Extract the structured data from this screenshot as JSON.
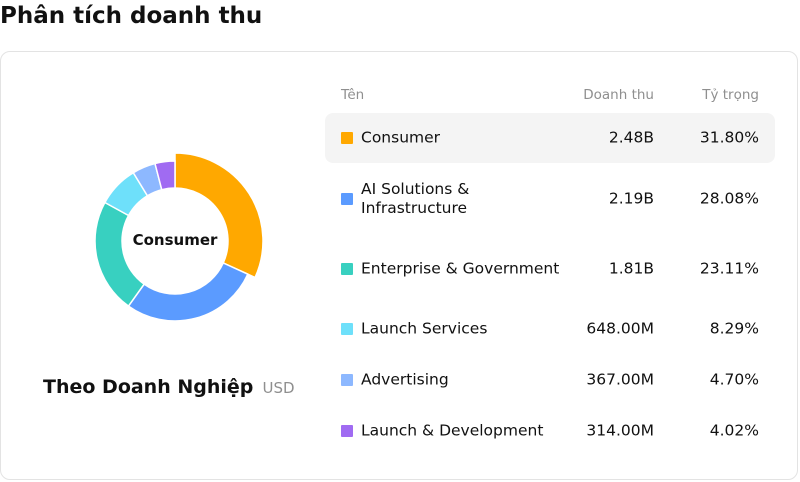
{
  "page": {
    "title": "Phân tích doanh thu"
  },
  "table": {
    "headers": {
      "name": "Tên",
      "revenue": "Doanh thu",
      "share": "Tỷ trọng"
    }
  },
  "selection": "Consumer",
  "footer": {
    "entity": "Theo Doanh Nghiệp",
    "unit": "USD"
  },
  "chart_data": {
    "type": "pie",
    "variant": "donut",
    "center_label": "Consumer",
    "slices": [
      {
        "name": "Consumer",
        "revenue": "2.48B",
        "share": "31.80%",
        "value": 31.8,
        "color": "#FFA800"
      },
      {
        "name": "AI Solutions & Infrastructure",
        "revenue": "2.19B",
        "share": "28.08%",
        "value": 28.08,
        "color": "#5B9BFF"
      },
      {
        "name": "Enterprise & Government",
        "revenue": "1.81B",
        "share": "23.11%",
        "value": 23.11,
        "color": "#38D0C0"
      },
      {
        "name": "Launch Services",
        "revenue": "648.00M",
        "share": "8.29%",
        "value": 8.29,
        "color": "#6EE0FA"
      },
      {
        "name": "Advertising",
        "revenue": "367.00M",
        "share": "4.70%",
        "value": 4.7,
        "color": "#8DB8FF"
      },
      {
        "name": "Launch & Development",
        "revenue": "314.00M",
        "share": "4.02%",
        "value": 4.02,
        "color": "#A06BF2"
      }
    ]
  }
}
